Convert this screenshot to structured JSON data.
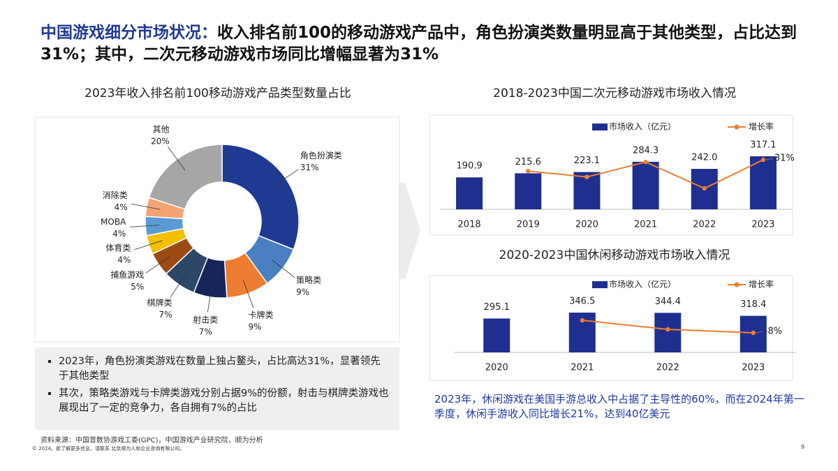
{
  "header": {
    "lead": "中国游戏细分市场状况：",
    "text": "收入排名前100的移动游戏产品中，角色扮演类数量明显高于其他类型，占比达到31%；其中，二次元移动游戏市场同比增幅显著为31%"
  },
  "chart_data": [
    {
      "type": "pie",
      "title": "2023年收入排名前100移动游戏产品类型数量占比",
      "categories": [
        "角色扮演类",
        "策略类",
        "卡牌类",
        "射击类",
        "棋牌类",
        "捕鱼游戏",
        "体育类",
        "MOBA",
        "消除类",
        "其他"
      ],
      "values": [
        31,
        9,
        9,
        7,
        7,
        5,
        4,
        4,
        4,
        20
      ],
      "value_labels": [
        "31%",
        "9%",
        "9%",
        "7%",
        "7%",
        "5%",
        "4%",
        "4%",
        "4%",
        "20%"
      ],
      "colors": [
        "#1f3a93",
        "#4a7fc1",
        "#ee7d31",
        "#16255a",
        "#2c4768",
        "#9c4a14",
        "#f5c000",
        "#5b9bd5",
        "#f4a373",
        "#a6a6a6"
      ]
    },
    {
      "type": "bar-line",
      "title": "2018-2023中国二次元移动游戏市场收入情况",
      "categories": [
        "2018",
        "2019",
        "2020",
        "2021",
        "2022",
        "2023"
      ],
      "series": [
        {
          "name": "市场收入（亿元）",
          "color": "#1f2f8f",
          "values": [
            190.9,
            215.6,
            223.1,
            284.3,
            242.0,
            317.1
          ],
          "value_labels": [
            "190.9",
            "215.6",
            "223.1",
            "284.3",
            "242.0",
            "317.1"
          ]
        },
        {
          "name": "增长率",
          "color": "#ed7d31",
          "values": [
            null,
            12.9,
            3.5,
            27.4,
            -14.9,
            31.0
          ],
          "value_labels": [
            null,
            null,
            null,
            null,
            null,
            "31%"
          ]
        }
      ]
    },
    {
      "type": "bar-line",
      "title": "2020-2023中国休闲移动游戏市场收入情况",
      "categories": [
        "2020",
        "2021",
        "2022",
        "2023"
      ],
      "series": [
        {
          "name": "市场收入（亿元）",
          "color": "#1f2f8f",
          "values": [
            295.1,
            346.5,
            344.4,
            318.4
          ],
          "value_labels": [
            "295.1",
            "346.5",
            "344.4",
            "318.4"
          ]
        },
        {
          "name": "增长率",
          "color": "#ed7d31",
          "values": [
            null,
            17.4,
            -0.6,
            -7.55
          ],
          "value_labels": [
            null,
            null,
            null,
            "-8%"
          ]
        }
      ]
    }
  ],
  "bullets": [
    "2023年，角色扮演类游戏在数量上独占鳌头，占比高达31%，显著领先于其他类型",
    "其次，策略类游戏与卡牌类游戏分别占据9%的份额，射击与棋牌类游戏也展现出了一定的竞争力，各自拥有7%的占比"
  ],
  "note": "2023年，休闲游戏在美国手游总收入中占据了主导性的60%，而在2024年第一季度，休闲手游收入同比增长21%，达到40亿美元",
  "source": "资料来源：中国音数协游戏工委(GPC)，中国游戏产业研究院，顺为分析",
  "copyright": "© 2024。欲了解更多信息，请联系 北京顺为人和企业咨询有限公司。",
  "page": "9"
}
